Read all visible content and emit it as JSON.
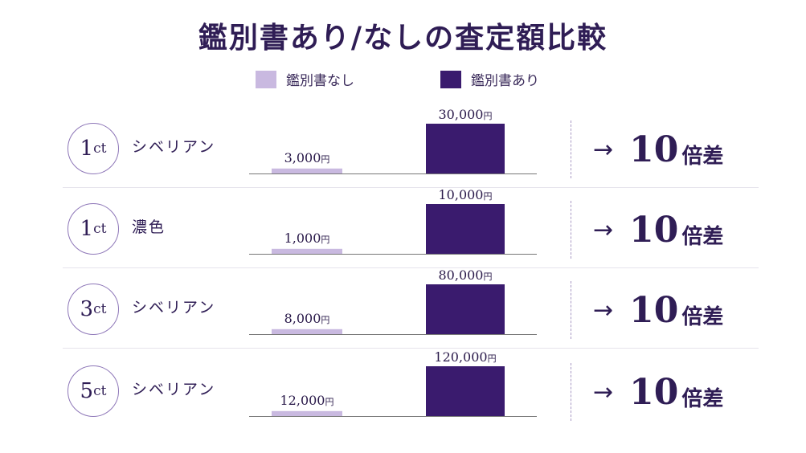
{
  "colors": {
    "without": "#c9b9e0",
    "with": "#3a1b6e",
    "axis": "#777777"
  },
  "chart_data": {
    "type": "bar",
    "title": "鑑別書あり/なしの査定額比較",
    "legend": "top-center",
    "series": [
      {
        "name": "鑑別書なし",
        "values": [
          3000,
          1000,
          8000,
          12000
        ]
      },
      {
        "name": "鑑別書あり",
        "values": [
          30000,
          10000,
          80000,
          120000
        ]
      }
    ],
    "unit": "円",
    "categories": [
      {
        "carat_num": "1",
        "carat_unit": "ct",
        "desc": "シベリアン",
        "without_label": "3,000",
        "with_label": "30,000",
        "ratio_num": "10",
        "ratio_unit": "倍差"
      },
      {
        "carat_num": "1",
        "carat_unit": "ct",
        "desc": "濃色",
        "without_label": "1,000",
        "with_label": "10,000",
        "ratio_num": "10",
        "ratio_unit": "倍差"
      },
      {
        "carat_num": "3",
        "carat_unit": "ct",
        "desc": "シベリアン",
        "without_label": "8,000",
        "with_label": "80,000",
        "ratio_num": "10",
        "ratio_unit": "倍差"
      },
      {
        "carat_num": "5",
        "carat_unit": "ct",
        "desc": "シベリアン",
        "without_label": "12,000",
        "with_label": "120,000",
        "ratio_num": "10",
        "ratio_unit": "倍差"
      }
    ],
    "arrow": "→"
  }
}
